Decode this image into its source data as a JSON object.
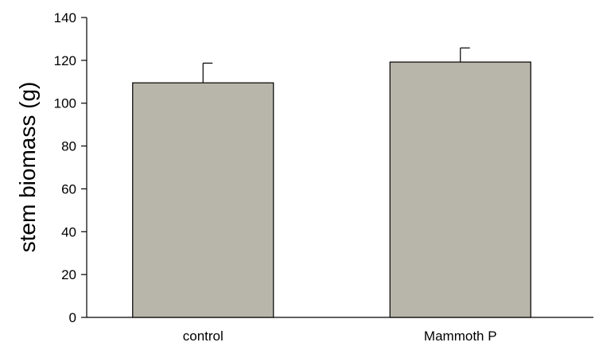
{
  "chart_data": {
    "type": "bar",
    "categories": [
      "control",
      "Mammoth P"
    ],
    "values": [
      109.5,
      119.2
    ],
    "errors": [
      9.2,
      6.6
    ],
    "title": "",
    "xlabel": "",
    "ylabel": "stem biomass (g)",
    "ylim": [
      0,
      140
    ],
    "yticks": [
      0,
      20,
      40,
      60,
      80,
      100,
      120,
      140
    ],
    "grid": false,
    "legend": "none",
    "colors": {
      "bar_fill": "#b8b6aa",
      "bar_stroke": "#000000",
      "axis": "#000000"
    }
  }
}
